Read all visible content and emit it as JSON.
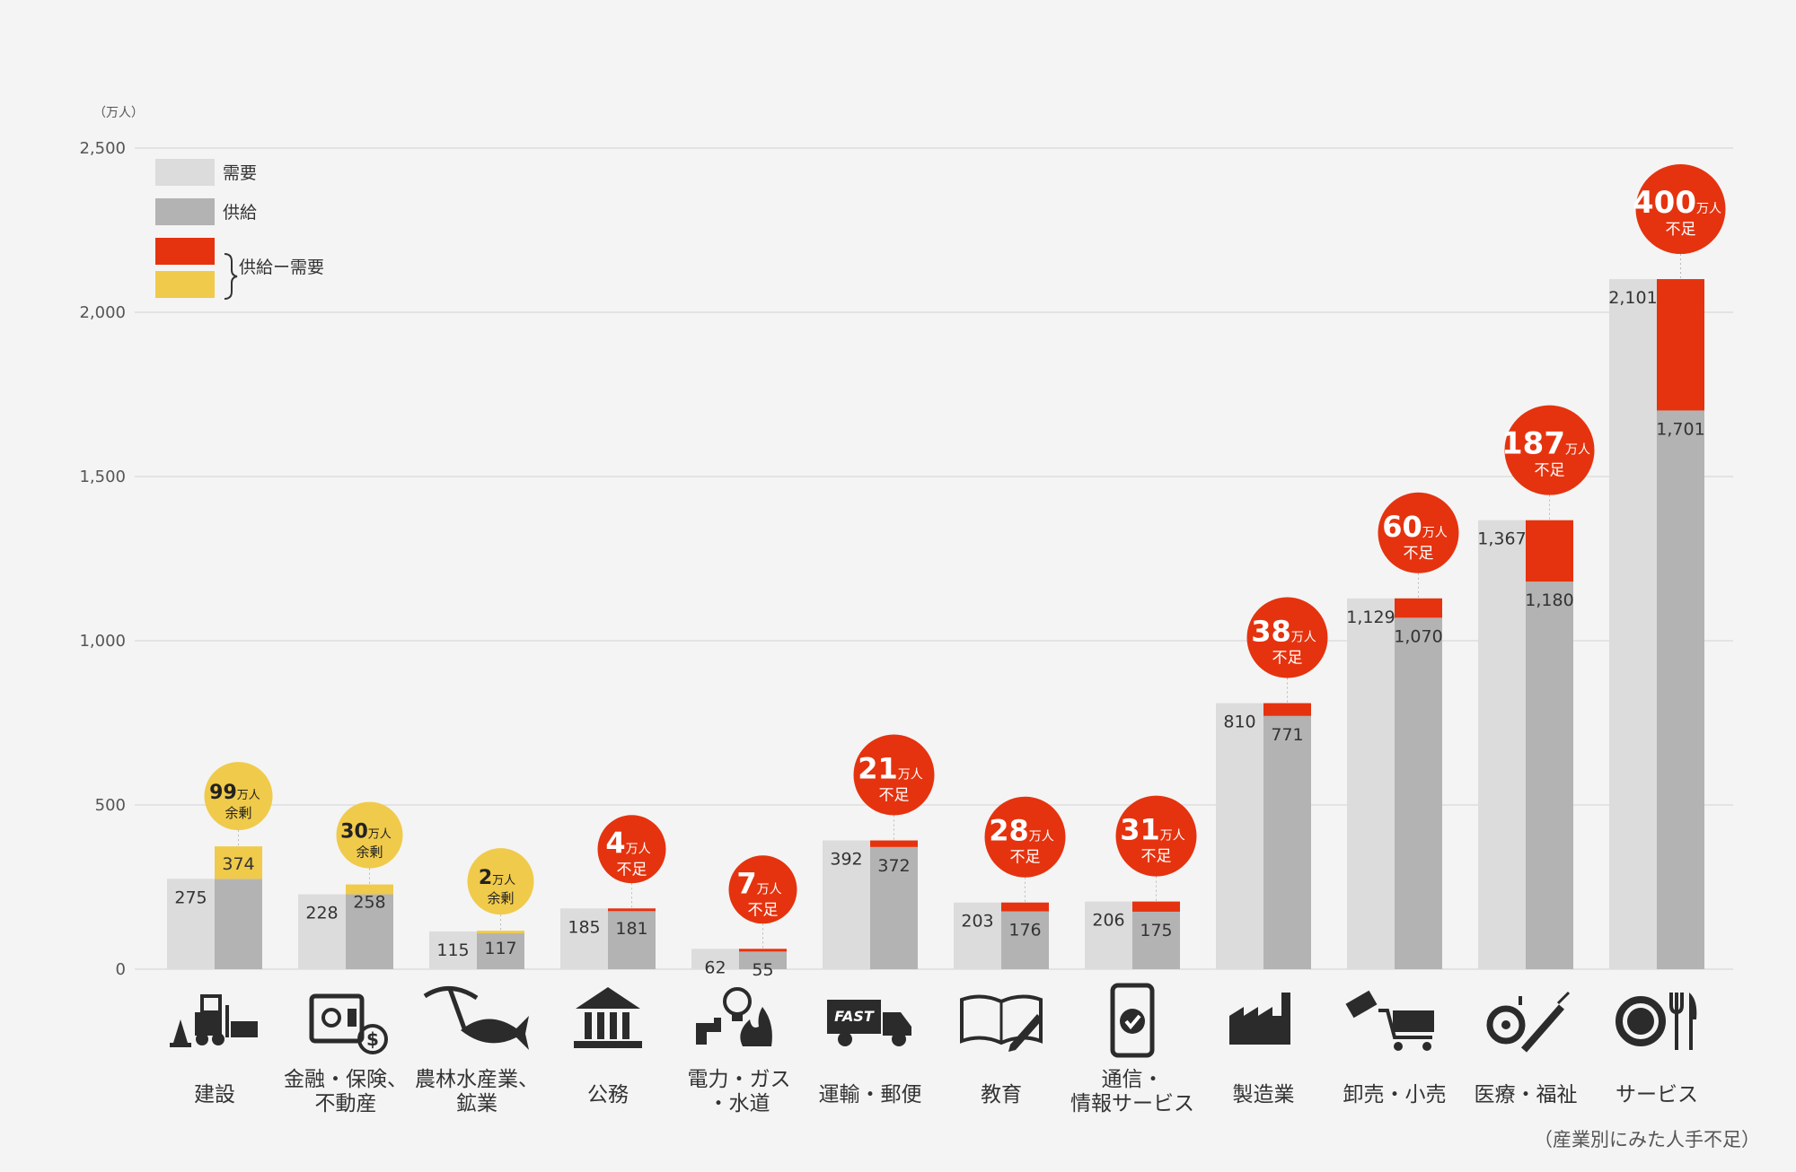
{
  "chart_data": {
    "type": "bar",
    "unit_label": "（万人）",
    "ylim": [
      0,
      2500
    ],
    "yticks": [
      "0",
      "500",
      "1,000",
      "1,500",
      "2,000",
      "2,500"
    ],
    "grid": true,
    "legend_position": "top-left",
    "legend": {
      "demand": "需要",
      "supply": "供給",
      "diff": "供給ー需要"
    },
    "caption": "（産業別にみた人手不足）",
    "colors": {
      "demand": "#dcdcdc",
      "supply": "#b3b3b3",
      "shortage": "#e5330f",
      "surplus": "#f0ca4a"
    },
    "categories": [
      {
        "lines": [
          "建設"
        ],
        "icon": "construction-icon"
      },
      {
        "lines": [
          "金融・保険、",
          "不動産"
        ],
        "icon": "safe-money-icon"
      },
      {
        "lines": [
          "農林水産業、",
          "鉱業"
        ],
        "icon": "pickaxe-fish-icon"
      },
      {
        "lines": [
          "公務"
        ],
        "icon": "government-building-icon"
      },
      {
        "lines": [
          "電力・ガス",
          "・水道"
        ],
        "icon": "utilities-icon"
      },
      {
        "lines": [
          "運輸・郵便"
        ],
        "icon": "delivery-truck-icon"
      },
      {
        "lines": [
          "教育"
        ],
        "icon": "book-pencil-icon"
      },
      {
        "lines": [
          "通信・",
          "情報サービス"
        ],
        "icon": "smartphone-icon"
      },
      {
        "lines": [
          "製造業"
        ],
        "icon": "factory-icon"
      },
      {
        "lines": [
          "卸売・小売"
        ],
        "icon": "shopping-cart-icon"
      },
      {
        "lines": [
          "医療・福祉"
        ],
        "icon": "medical-icon"
      },
      {
        "lines": [
          "サービス"
        ],
        "icon": "dining-icon"
      }
    ],
    "series": [
      {
        "name": "需要",
        "values": [
          275,
          228,
          115,
          185,
          62,
          392,
          203,
          206,
          810,
          1129,
          1367,
          2101
        ],
        "labels": [
          "275",
          "228",
          "115",
          "185",
          "62",
          "392",
          "203",
          "206",
          "810",
          "1,129",
          "1,367",
          "2,101"
        ]
      },
      {
        "name": "供給",
        "values": [
          374,
          258,
          117,
          181,
          55,
          372,
          176,
          175,
          771,
          1070,
          1180,
          1701
        ],
        "labels": [
          "374",
          "258",
          "117",
          "181",
          "55",
          "372",
          "176",
          "175",
          "771",
          "1,070",
          "1,180",
          "1,701"
        ]
      }
    ],
    "balance": [
      {
        "value": "99",
        "unit": "万人",
        "status": "余剰"
      },
      {
        "value": "30",
        "unit": "万人",
        "status": "余剰"
      },
      {
        "value": "2",
        "unit": "万人",
        "status": "余剰"
      },
      {
        "value": "4",
        "unit": "万人",
        "status": "不足"
      },
      {
        "value": "7",
        "unit": "万人",
        "status": "不足"
      },
      {
        "value": "21",
        "unit": "万人",
        "status": "不足"
      },
      {
        "value": "28",
        "unit": "万人",
        "status": "不足"
      },
      {
        "value": "31",
        "unit": "万人",
        "status": "不足"
      },
      {
        "value": "38",
        "unit": "万人",
        "status": "不足"
      },
      {
        "value": "60",
        "unit": "万人",
        "status": "不足"
      },
      {
        "value": "187",
        "unit": "万人",
        "status": "不足"
      },
      {
        "value": "400",
        "unit": "万人",
        "status": "不足"
      }
    ]
  }
}
